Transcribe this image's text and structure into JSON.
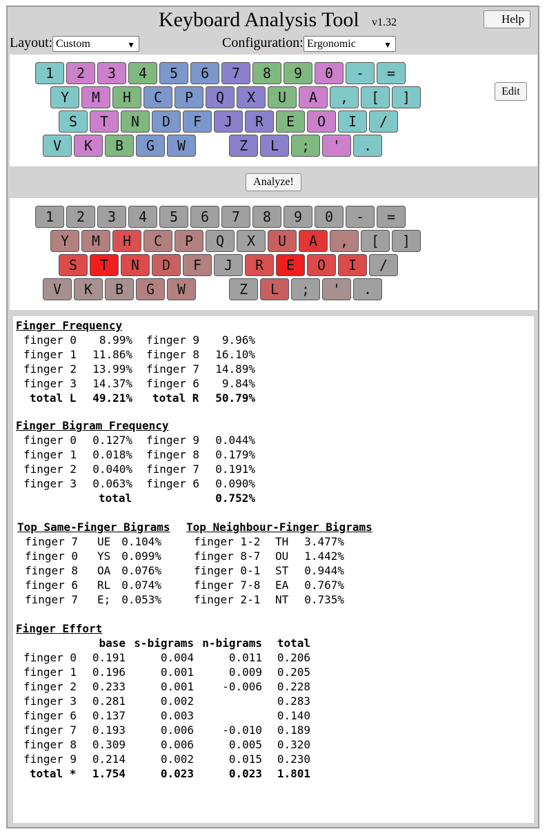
{
  "app": {
    "title": "Keyboard Analysis Tool",
    "version": "v1.32",
    "help_label": "Help"
  },
  "controls": {
    "layout_label": "Layout:",
    "layout_value": "Custom",
    "config_label": "Configuration:",
    "config_value": "Ergonomic",
    "edit_label": "Edit",
    "analyze_label": "Analyze!"
  },
  "colors": {
    "teal": "#80c8c8",
    "pink": "#cc80cc",
    "green": "#80b880",
    "blue": "#7b97cb",
    "violet": "#8a80cc"
  },
  "keyboard_layout": {
    "rows": [
      [
        [
          "1",
          "teal"
        ],
        [
          "2",
          "pink"
        ],
        [
          "3",
          "pink"
        ],
        [
          "4",
          "green"
        ],
        [
          "5",
          "blue"
        ],
        [
          "6",
          "blue"
        ],
        [
          "7",
          "violet"
        ],
        [
          "8",
          "green"
        ],
        [
          "9",
          "green"
        ],
        [
          "0",
          "pink"
        ],
        [
          "-",
          "teal"
        ],
        [
          "=",
          "teal"
        ]
      ],
      [
        [
          "Y",
          "teal"
        ],
        [
          "M",
          "pink"
        ],
        [
          "H",
          "green"
        ],
        [
          "C",
          "blue"
        ],
        [
          "P",
          "blue"
        ],
        [
          "Q",
          "violet"
        ],
        [
          "X",
          "violet"
        ],
        [
          "U",
          "green"
        ],
        [
          "A",
          "pink"
        ],
        [
          ",",
          "teal"
        ],
        [
          "[",
          "teal"
        ],
        [
          "]",
          "teal"
        ]
      ],
      [
        [
          "S",
          "teal"
        ],
        [
          "T",
          "pink"
        ],
        [
          "N",
          "green"
        ],
        [
          "D",
          "blue"
        ],
        [
          "F",
          "blue"
        ],
        [
          "J",
          "violet"
        ],
        [
          "R",
          "violet"
        ],
        [
          "E",
          "green"
        ],
        [
          "O",
          "pink"
        ],
        [
          "I",
          "teal"
        ],
        [
          "/",
          "teal"
        ]
      ],
      [
        [
          "V",
          "teal"
        ],
        [
          "K",
          "pink"
        ],
        [
          "B",
          "green"
        ],
        [
          "G",
          "blue"
        ],
        [
          "W",
          "blue"
        ],
        [
          "Z",
          "violet"
        ],
        [
          "L",
          "violet"
        ],
        [
          ";",
          "green"
        ],
        [
          "'",
          "pink"
        ],
        [
          ".",
          "teal"
        ]
      ]
    ]
  },
  "heatmap": {
    "rows": [
      [
        [
          "1",
          "#a0a0a0"
        ],
        [
          "2",
          "#a0a0a0"
        ],
        [
          "3",
          "#a0a0a0"
        ],
        [
          "4",
          "#a0a0a0"
        ],
        [
          "5",
          "#a0a0a0"
        ],
        [
          "6",
          "#a0a0a0"
        ],
        [
          "7",
          "#a0a0a0"
        ],
        [
          "8",
          "#a0a0a0"
        ],
        [
          "9",
          "#a0a0a0"
        ],
        [
          "0",
          "#a0a0a0"
        ],
        [
          "-",
          "#a0a0a0"
        ],
        [
          "=",
          "#a0a0a0"
        ]
      ],
      [
        [
          "Y",
          "#b38080"
        ],
        [
          "M",
          "#b38080"
        ],
        [
          "H",
          "#d95050"
        ],
        [
          "C",
          "#b38080"
        ],
        [
          "P",
          "#b38080"
        ],
        [
          "Q",
          "#a0a0a0"
        ],
        [
          "X",
          "#a0a0a0"
        ],
        [
          "U",
          "#c86060"
        ],
        [
          "A",
          "#e43535"
        ],
        [
          ",",
          "#b38080"
        ],
        [
          "[",
          "#a0a0a0"
        ],
        [
          "]",
          "#a0a0a0"
        ]
      ],
      [
        [
          "S",
          "#dc4a4a"
        ],
        [
          "T",
          "#f01e1e"
        ],
        [
          "N",
          "#dc4a4a"
        ],
        [
          "D",
          "#c86060"
        ],
        [
          "F",
          "#b38080"
        ],
        [
          "J",
          "#a0a0a0"
        ],
        [
          "R",
          "#d95050"
        ],
        [
          "E",
          "#f01e1e"
        ],
        [
          "O",
          "#dc4a4a"
        ],
        [
          "I",
          "#dc4a4a"
        ],
        [
          "/",
          "#a0a0a0"
        ]
      ],
      [
        [
          "V",
          "#a89090"
        ],
        [
          "K",
          "#a89090"
        ],
        [
          "B",
          "#a89090"
        ],
        [
          "G",
          "#b38080"
        ],
        [
          "W",
          "#b38080"
        ],
        [
          "Z",
          "#a0a0a0"
        ],
        [
          "L",
          "#c86060"
        ],
        [
          ";",
          "#a0a0a0"
        ],
        [
          "'",
          "#a89090"
        ],
        [
          ".",
          "#a0a0a0"
        ]
      ]
    ]
  },
  "finger_frequency": {
    "title": "Finger Frequency",
    "rows": [
      [
        "finger 0",
        "8.99%",
        "finger 9",
        "9.96%"
      ],
      [
        "finger 1",
        "11.86%",
        "finger 8",
        "16.10%"
      ],
      [
        "finger 2",
        "13.99%",
        "finger 7",
        "14.89%"
      ],
      [
        "finger 3",
        "14.37%",
        "finger 6",
        "9.84%"
      ]
    ],
    "total": [
      "total L",
      "49.21%",
      "total R",
      "50.79%"
    ]
  },
  "bigram_frequency": {
    "title": "Finger Bigram Frequency",
    "rows": [
      [
        "finger 0",
        "0.127%",
        "finger 9",
        "0.044%"
      ],
      [
        "finger 1",
        "0.018%",
        "finger 8",
        "0.179%"
      ],
      [
        "finger 2",
        "0.040%",
        "finger 7",
        "0.191%"
      ],
      [
        "finger 3",
        "0.063%",
        "finger 6",
        "0.090%"
      ]
    ],
    "total": [
      "total",
      "0.752%"
    ]
  },
  "top_bigrams": {
    "same_title": "Top Same-Finger Bigrams",
    "neighbour_title": "Top Neighbour-Finger Bigrams",
    "same": [
      [
        "finger 7",
        "UE",
        "0.104%"
      ],
      [
        "finger 0",
        "YS",
        "0.099%"
      ],
      [
        "finger 8",
        "OA",
        "0.076%"
      ],
      [
        "finger 6",
        "RL",
        "0.074%"
      ],
      [
        "finger 7",
        "E;",
        "0.053%"
      ]
    ],
    "neighbour": [
      [
        "finger 1-2",
        "TH",
        "3.477%"
      ],
      [
        "finger 8-7",
        "OU",
        "1.442%"
      ],
      [
        "finger 0-1",
        "ST",
        "0.944%"
      ],
      [
        "finger 7-8",
        "EA",
        "0.767%"
      ],
      [
        "finger 2-1",
        "NT",
        "0.735%"
      ]
    ]
  },
  "finger_effort": {
    "title": "Finger Effort",
    "headers": [
      "base",
      "s-bigrams",
      "n-bigrams",
      "total"
    ],
    "rows": [
      [
        "finger 0",
        "0.191",
        "0.004",
        "0.011",
        "0.206"
      ],
      [
        "finger 1",
        "0.196",
        "0.001",
        "0.009",
        "0.205"
      ],
      [
        "finger 2",
        "0.233",
        "0.001",
        "-0.006",
        "0.228"
      ],
      [
        "finger 3",
        "0.281",
        "0.002",
        "",
        "0.283"
      ],
      [
        "finger 6",
        "0.137",
        "0.003",
        "",
        "0.140"
      ],
      [
        "finger 7",
        "0.193",
        "0.006",
        "-0.010",
        "0.189"
      ],
      [
        "finger 8",
        "0.309",
        "0.006",
        "0.005",
        "0.320"
      ],
      [
        "finger 9",
        "0.214",
        "0.002",
        "0.015",
        "0.230"
      ]
    ],
    "total": [
      "total *",
      "1.754",
      "0.023",
      "0.023",
      "1.801"
    ]
  }
}
